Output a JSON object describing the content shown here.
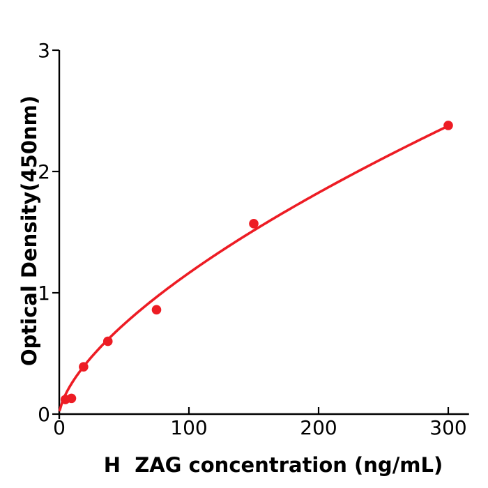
{
  "chart_data": {
    "type": "scatter",
    "title": "",
    "xlabel": "H  ZAG concentration (ng/mL)",
    "ylabel": "Optical Density(450nm)",
    "xlim": [
      0,
      316
    ],
    "ylim": [
      0,
      3
    ],
    "x_ticks": [
      0,
      100,
      200,
      300
    ],
    "y_ticks": [
      0,
      1,
      2,
      3
    ],
    "grid": false,
    "legend": null,
    "points": [
      {
        "x": 4.7,
        "y": 0.12
      },
      {
        "x": 9.4,
        "y": 0.13
      },
      {
        "x": 18.75,
        "y": 0.39
      },
      {
        "x": 37.5,
        "y": 0.6
      },
      {
        "x": 75,
        "y": 0.86
      },
      {
        "x": 150,
        "y": 1.57
      },
      {
        "x": 300,
        "y": 2.38
      }
    ],
    "fit_curve": {
      "type": "power",
      "equation": "y = a * x^b",
      "a": 0.0583,
      "b": 0.65,
      "x_start": 0.4,
      "x_end": 300
    },
    "colors": {
      "marker": "#ed1c24",
      "line": "#ed1c24",
      "axis": "#000000",
      "text": "#000000",
      "background": "#ffffff"
    }
  }
}
